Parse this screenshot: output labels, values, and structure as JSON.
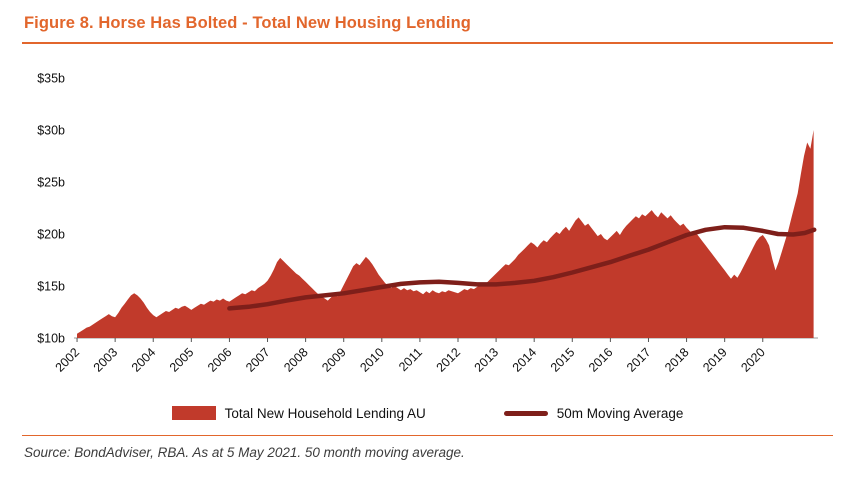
{
  "figure": {
    "title": "Figure 8. Horse Has Bolted - Total New Housing Lending",
    "source": "Source: BondAdviser, RBA. As at 5 May 2021. 50 month moving average."
  },
  "legend": {
    "series1": "Total New Household Lending AU",
    "series2": "50m Moving Average"
  },
  "colors": {
    "accent_orange": "#E2662C",
    "area_fill": "#C13A2B",
    "moving_average": "#7E1F1A",
    "axis_text": "#111111"
  },
  "chart_data": {
    "type": "area",
    "title": "Figure 8. Horse Has Bolted - Total New Housing Lending",
    "xlabel": "",
    "ylabel": "",
    "x_range": [
      2001.92,
      2021.45
    ],
    "y_range": [
      10,
      35
    ],
    "grid": false,
    "legend_position": "bottom",
    "y_ticks": {
      "values": [
        10,
        15,
        20,
        25,
        30,
        35
      ],
      "labels": [
        "$10b",
        "$15b",
        "$20b",
        "$25b",
        "$30b",
        "$35b"
      ]
    },
    "x_ticks": [
      2002,
      2003,
      2004,
      2005,
      2006,
      2007,
      2008,
      2009,
      2010,
      2011,
      2012,
      2013,
      2014,
      2015,
      2016,
      2017,
      2018,
      2019,
      2020
    ],
    "series": [
      {
        "name": "Total New Household Lending AU",
        "style": "area",
        "unit": "$b",
        "x_start": 2002.0,
        "x_step": 0.0833333,
        "values": [
          10.4,
          10.6,
          10.8,
          11.0,
          11.1,
          11.3,
          11.5,
          11.7,
          11.9,
          12.1,
          12.3,
          12.1,
          12.0,
          12.4,
          12.9,
          13.3,
          13.7,
          14.1,
          14.3,
          14.1,
          13.8,
          13.4,
          12.9,
          12.5,
          12.2,
          12.0,
          12.2,
          12.4,
          12.6,
          12.5,
          12.7,
          12.9,
          12.8,
          13.0,
          13.1,
          12.9,
          12.7,
          12.9,
          13.1,
          13.3,
          13.2,
          13.4,
          13.6,
          13.5,
          13.7,
          13.6,
          13.8,
          13.6,
          13.5,
          13.7,
          13.9,
          14.1,
          14.3,
          14.2,
          14.4,
          14.6,
          14.5,
          14.8,
          15.0,
          15.2,
          15.5,
          16.0,
          16.6,
          17.3,
          17.7,
          17.4,
          17.1,
          16.8,
          16.5,
          16.2,
          16.0,
          15.7,
          15.4,
          15.1,
          14.8,
          14.5,
          14.2,
          14.0,
          13.8,
          13.6,
          13.9,
          14.2,
          14.0,
          14.5,
          15.1,
          15.7,
          16.3,
          16.9,
          17.2,
          17.0,
          17.4,
          17.8,
          17.5,
          17.1,
          16.6,
          16.1,
          15.7,
          15.3,
          15.0,
          14.8,
          15.0,
          14.8,
          14.6,
          14.8,
          14.6,
          14.7,
          14.5,
          14.6,
          14.4,
          14.2,
          14.5,
          14.3,
          14.6,
          14.4,
          14.3,
          14.5,
          14.4,
          14.6,
          14.5,
          14.4,
          14.3,
          14.5,
          14.7,
          14.6,
          14.8,
          14.7,
          14.9,
          15.1,
          15.0,
          15.3,
          15.6,
          15.9,
          16.2,
          16.5,
          16.8,
          17.1,
          17.0,
          17.3,
          17.6,
          18.0,
          18.3,
          18.6,
          18.9,
          19.2,
          19.0,
          18.7,
          19.1,
          19.4,
          19.2,
          19.6,
          19.9,
          20.2,
          20.0,
          20.4,
          20.7,
          20.3,
          20.8,
          21.3,
          21.6,
          21.2,
          20.8,
          21.0,
          20.6,
          20.2,
          19.8,
          20.0,
          19.6,
          19.4,
          19.7,
          20.0,
          20.3,
          19.9,
          20.4,
          20.8,
          21.1,
          21.4,
          21.7,
          21.5,
          21.9,
          21.7,
          22.0,
          22.3,
          21.9,
          21.6,
          22.1,
          21.8,
          21.5,
          21.8,
          21.4,
          21.1,
          20.8,
          21.0,
          20.6,
          20.3,
          19.9,
          20.1,
          19.7,
          19.3,
          18.9,
          18.5,
          18.1,
          17.7,
          17.3,
          16.9,
          16.5,
          16.1,
          15.7,
          16.1,
          15.8,
          16.3,
          16.9,
          17.5,
          18.1,
          18.7,
          19.3,
          19.7,
          19.9,
          19.5,
          18.9,
          17.6,
          16.5,
          17.3,
          18.3,
          19.3,
          20.3,
          21.5,
          22.7,
          23.9,
          25.8,
          27.5,
          28.8,
          28.2,
          30.0
        ]
      },
      {
        "name": "50m Moving Average",
        "style": "line",
        "unit": "$b",
        "points": [
          [
            2006.0,
            12.85
          ],
          [
            2006.5,
            13.0
          ],
          [
            2007.0,
            13.25
          ],
          [
            2007.5,
            13.6
          ],
          [
            2008.0,
            13.9
          ],
          [
            2008.5,
            14.1
          ],
          [
            2009.0,
            14.3
          ],
          [
            2009.5,
            14.6
          ],
          [
            2010.0,
            14.9
          ],
          [
            2010.5,
            15.2
          ],
          [
            2011.0,
            15.35
          ],
          [
            2011.5,
            15.4
          ],
          [
            2012.0,
            15.3
          ],
          [
            2012.5,
            15.15
          ],
          [
            2013.0,
            15.15
          ],
          [
            2013.5,
            15.3
          ],
          [
            2014.0,
            15.5
          ],
          [
            2014.5,
            15.85
          ],
          [
            2015.0,
            16.3
          ],
          [
            2015.5,
            16.8
          ],
          [
            2016.0,
            17.3
          ],
          [
            2016.5,
            17.9
          ],
          [
            2017.0,
            18.5
          ],
          [
            2017.5,
            19.2
          ],
          [
            2018.0,
            19.9
          ],
          [
            2018.5,
            20.4
          ],
          [
            2019.0,
            20.65
          ],
          [
            2019.5,
            20.6
          ],
          [
            2020.0,
            20.3
          ],
          [
            2020.4,
            20.0
          ],
          [
            2020.8,
            19.95
          ],
          [
            2021.1,
            20.1
          ],
          [
            2021.35,
            20.4
          ]
        ]
      }
    ]
  }
}
